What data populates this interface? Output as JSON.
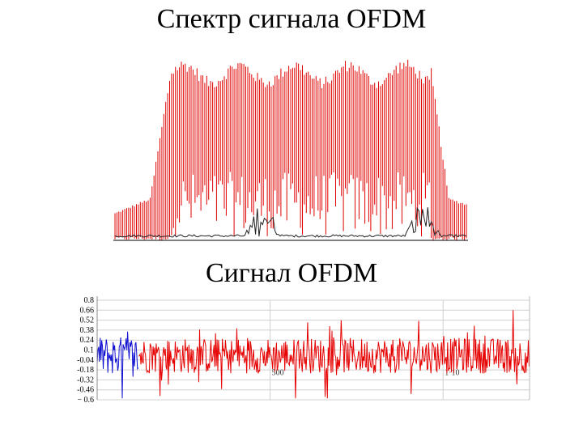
{
  "titles": {
    "spectrum": "Спектр сигнала OFDM",
    "signal": "Сигнал OFDM"
  },
  "colors": {
    "spectrum": "#e00000",
    "spectrum_side": "#222222",
    "signal_main": "#e60000",
    "signal_prefix": "#1010d0",
    "grid": "#d0d0d0"
  },
  "chart_data": [
    {
      "type": "line",
      "name_hint": "spectrum",
      "title": "Спектр сигнала OFDM",
      "xlabel": "",
      "ylabel": "",
      "grid": false,
      "legend": "none",
      "x_range": [
        0,
        1
      ],
      "y_range": [
        0,
        1
      ],
      "subcarrier_lines": 120,
      "band": [
        0.15,
        0.85
      ],
      "passband_level": 0.95,
      "skirt_level": 0.2,
      "notches": [
        0.42,
        0.84
      ]
    },
    {
      "type": "line",
      "name_hint": "time-signal",
      "title": "Сигнал OFDM",
      "xlabel": "",
      "ylabel": "",
      "grid": true,
      "legend": "none",
      "y_ticks": [
        "0.8",
        "0.66",
        "0.52",
        "0.38",
        "0.24",
        "0.1",
        "-0.04",
        "-0.18",
        "-0.32",
        "-0.46",
        "-0.6"
      ],
      "y_range": [
        -0.6,
        0.8
      ],
      "x_ticks": [
        "500",
        "1·10"
      ],
      "x_tick_values": [
        500,
        1000
      ],
      "x_range": [
        0,
        1250
      ],
      "prefix_end": 120,
      "series": [
        {
          "color": "#1010d0",
          "x_start": 0,
          "x_end": 120
        },
        {
          "color": "#e60000",
          "x_start": 120,
          "x_end": 1250
        }
      ]
    }
  ]
}
